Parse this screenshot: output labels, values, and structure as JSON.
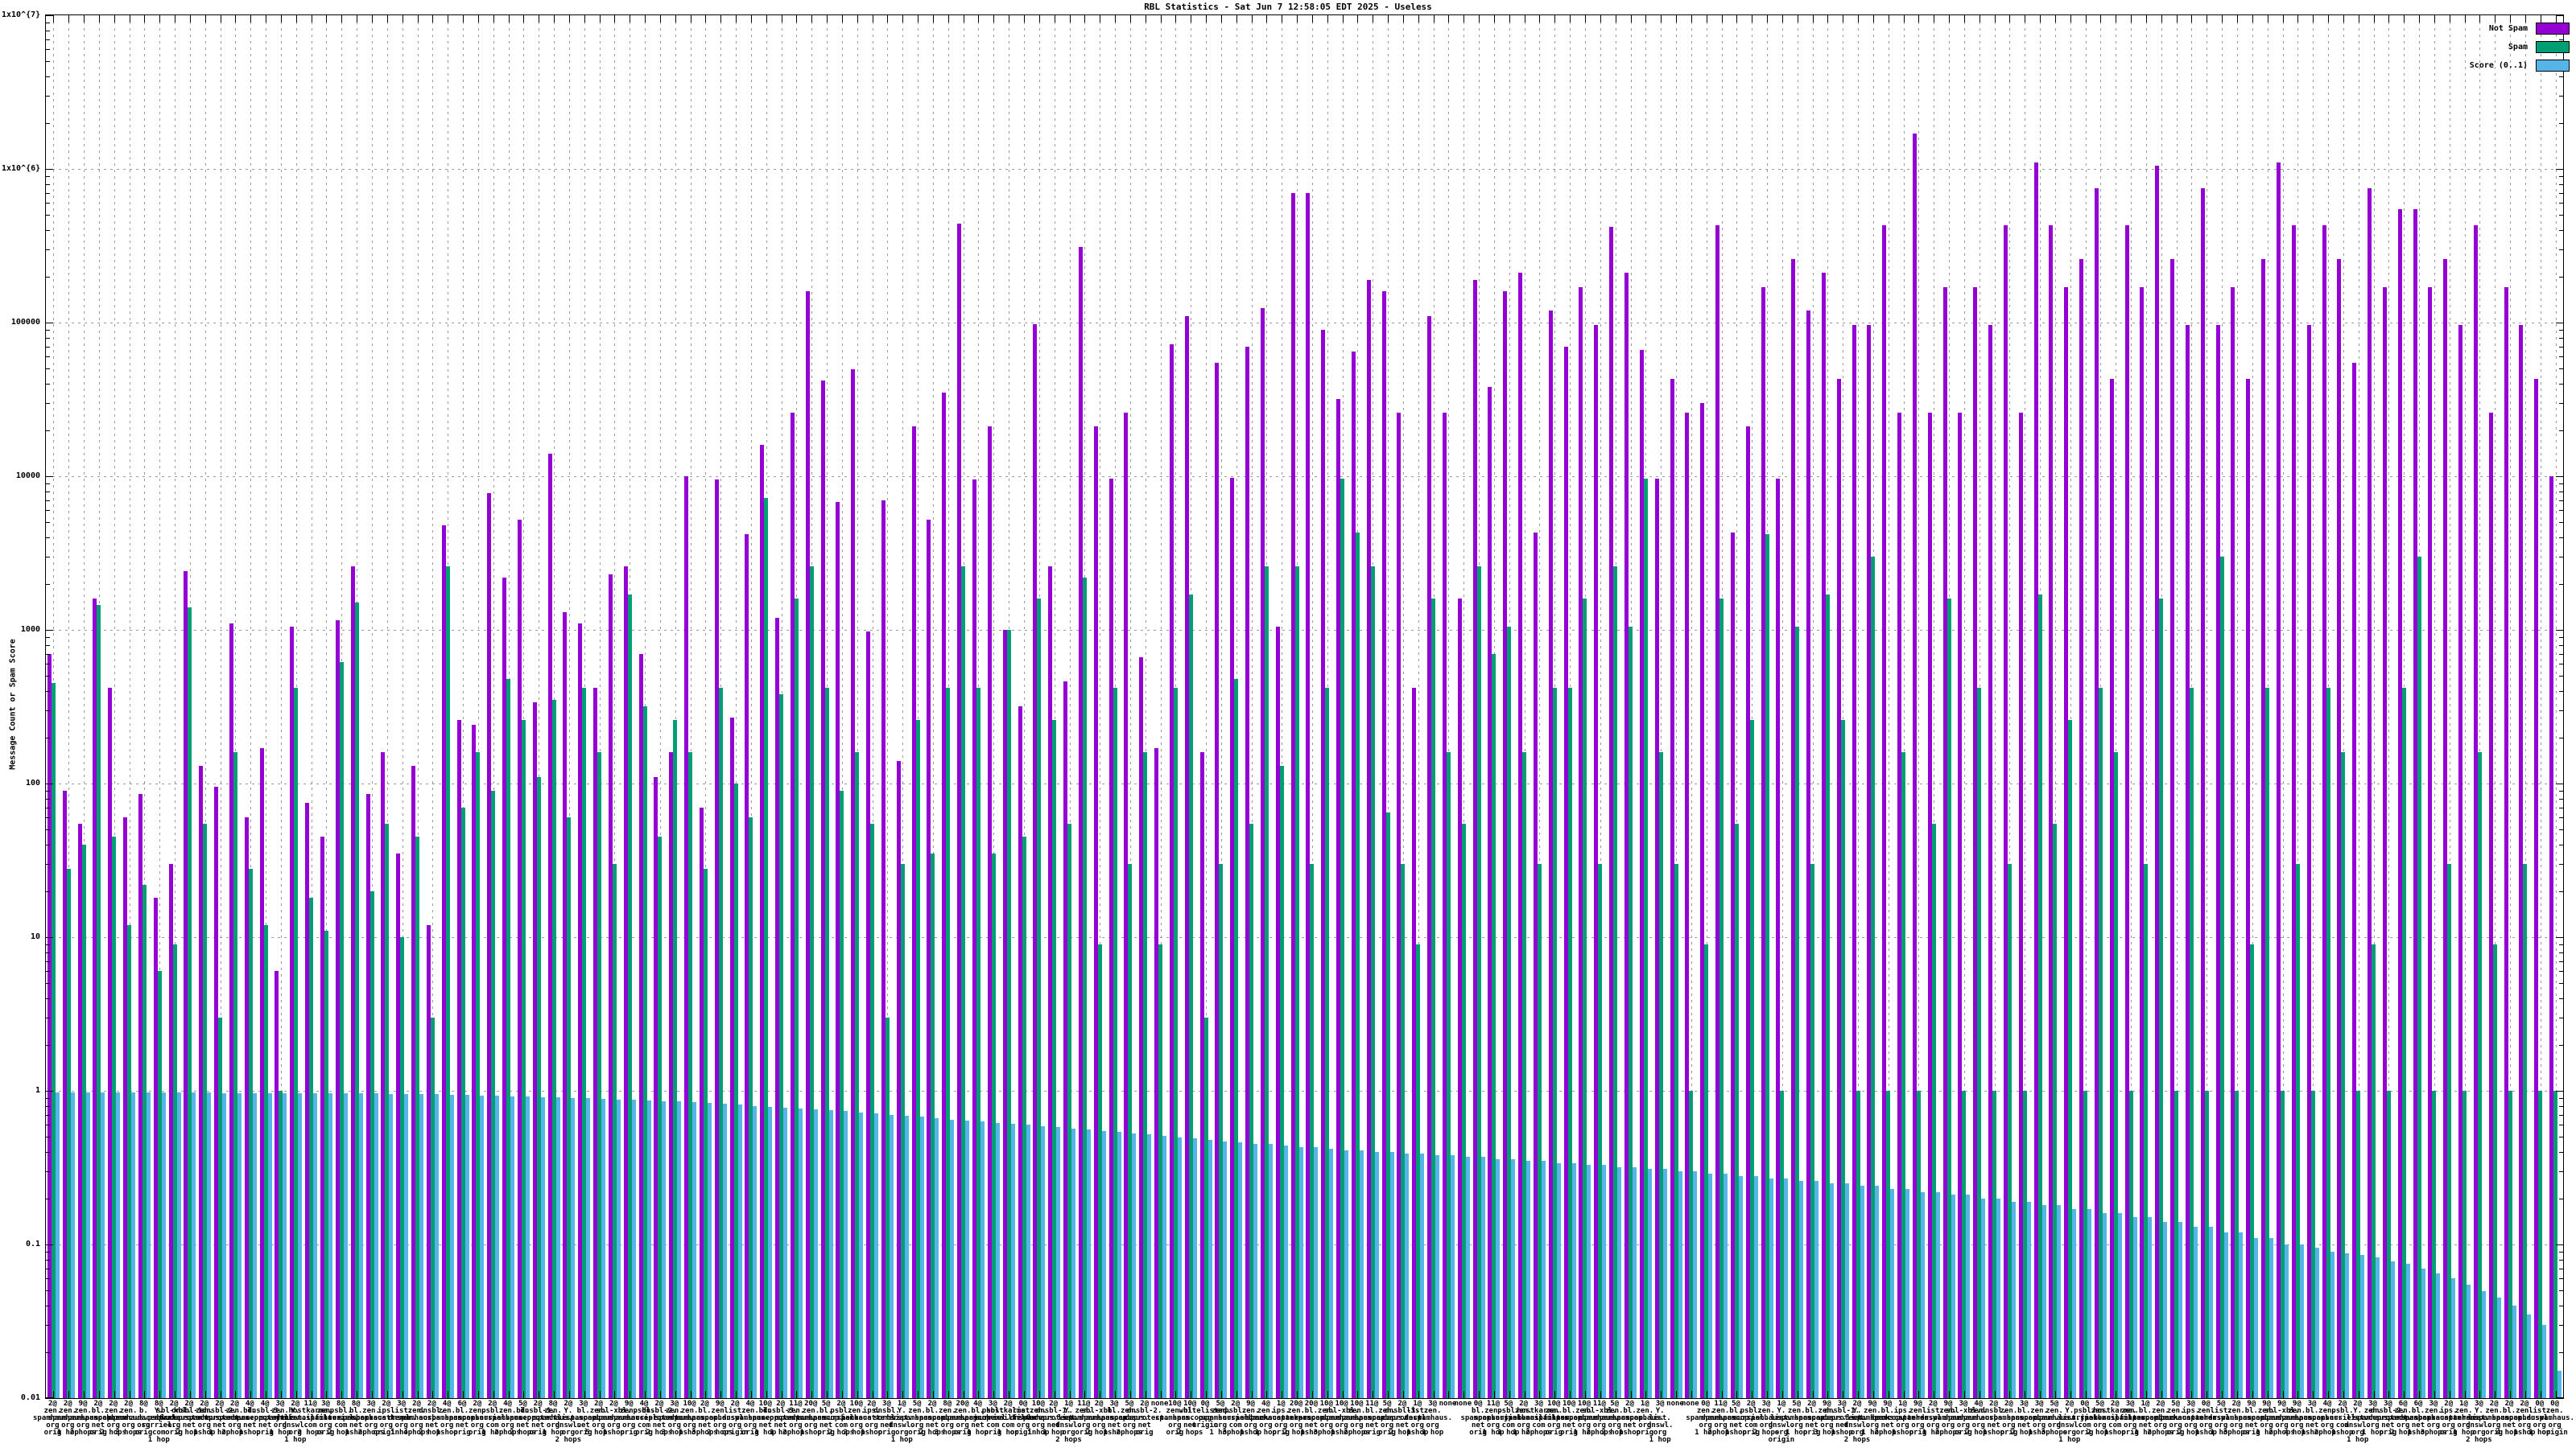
{
  "page": {
    "title": "RBL Statistics - Sat Jun  7 12:58:05 EDT 2025 - Useless"
  },
  "chart_data": {
    "type": "bar",
    "title": "RBL Statistics - Sat Jun  7 12:58:05 EDT 2025 - Useless",
    "xlabel": "",
    "ylabel": "Message Count or Spam Score",
    "yscale": "log",
    "ylim": [
      0.01,
      10000000
    ],
    "ytick_labels": [
      "1x10^{7}",
      "1x10^{6}",
      "100000",
      "10000",
      "1000",
      "100",
      "10",
      "1",
      "0.1",
      "0.01"
    ],
    "grid": true,
    "legend_position": "top-right-inside",
    "legend": [
      {
        "name": "Not Spam",
        "color": "#9400d3"
      },
      {
        "name": "Spam",
        "color": "#009e73"
      },
      {
        "name": "Score (0..1)",
        "color": "#56b4e9"
      }
    ],
    "categories": [
      "2@zen.spamhaus.org orig",
      "2@zen.spamhaus.org 1 hop",
      "9@zen.spamhaus.org 2 hops",
      "2@bl.spamcop.net orig",
      "2@zen.spamhaus.org 2 hops",
      "2@zen.spamhaus.org 3 hops",
      "8@b.barracudacentral.org orig",
      "8@Y.psbl.surriel.com 1 hop",
      "2@sbl-xbl.spamhaus.org orig",
      "2@dnsbl-1.uceprotect.net 2 hops",
      "2@zen.spamhaus.org 1 hop",
      "2@dnsbl-2.uceprotect.net 1 hop",
      "2@zen.spamhaus.org 2 hops",
      "4@bl.spamcop.net 1 hop",
      "4@dnsbl-3.uceprotect.net orig",
      "3@zen.spamhaus.org 1 hop",
      "2@Y.list.dnswl.org 1 hop",
      "11@hostkarma.junkemailfilter.com 2 hops",
      "3@zen.spamhaus.org orig",
      "8@psbl.surriel.com 2 hops",
      "8@bl.spamcop.net 1 hop",
      "3@zen.spamhaus.org 2 hops",
      "2@ips.backscatterer.org origin",
      "3@list.dnswl.org 1 hop",
      "2@zen.spamhaus.org 4 hops",
      "2@dnsbl.sorbs.net 2 hops",
      "4@zen.spamhaus.org 1 hop",
      "6@bl.spamcop.net orig",
      "2@zen.spamhaus.org orig",
      "2@psbl.surriel.com 1 hop",
      "4@zen.spamhaus.org 2 hops",
      "5@bl.spamcop.net 2 hops",
      "2@dnsbl-1.uceprotect.net orig",
      "8@zen.spamhaus.org 1 hop",
      "2@Y.list.dnswl.org 2 hops",
      "3@bl.spamcop.net orig",
      "2@zen.spamhaus.org 5 hops",
      "2@sbl-xbl.spamhaus.org 1 hop",
      "9@zen.spamhaus.org orig",
      "4@psbl.surriel.com orig",
      "2@dnsbl-2.uceprotect.net 2 hops",
      "3@zen.spamhaus.org 3 hops",
      "10@zen.spamhaus.org 1 hop",
      "2@bl.spamcop.net 3 hops",
      "9@zen.spamhaus.org 2 hops",
      "2@list.dnswl.org origin",
      "4@zen.spamhaus.org orig",
      "10@bl.spamcop.net 1 hop",
      "2@dnsbl-3.uceprotect.net 1 hop",
      "11@zen.spamhaus.org 2 hops",
      "20@zen.spamhaus.org 1 hop",
      "5@bl.spamcop.net orig",
      "2@psbl.surriel.com 2 hops",
      "10@zen.spamhaus.org 2 hops",
      "2@ips.backscatterer.org 1 hop",
      "3@dnsbl.sorbs.net orig",
      "1@Y.list.dnswl.org 1 hop",
      "5@zen.spamhaus.org orig",
      "2@bl.spamcop.net 2 hops",
      "8@zen.spamhaus.org 3 hops",
      "20@zen.spamhaus.org orig",
      "4@bl.spamcop.net 1 hop",
      "3@psbl.surriel.com orig",
      "2@hostkarma.junkemailfilter.com 1 hop",
      "0@list.dnswl.org origin",
      "10@zen.spamhaus.org 1 hop",
      "2@dnsbl-1.uceprotect.net 1 hop",
      "1@Y.list.dnswl.org 2 hops",
      "11@zen.spamhaus.org orig",
      "2@sbl-xbl.spamhaus.org 2 hops",
      "3@bl.spamcop.net 1 hop",
      "5@zen.spamhaus.org 2 hops",
      "2@dnsbl-2.uceprotect.net orig",
      "none",
      "10@zen.spamhaus.org orig",
      "10@bl.spamcop.net 2 hops",
      "0@whitelisted.org origin",
      "5@zen.spamhaus.org 1 hop",
      "2@psbl.surriel.com 3 hops",
      "9@zen.spamhaus.org 1 hop",
      "4@zen.spamhaus.org 1 hop",
      "1@ips.backscatterer.org orig",
      "20@zen.spamhaus.org 2 hops",
      "20@bl.spamcop.net 1 hop",
      "10@zen.spamhaus.org 3 hops",
      "10@sbl-xbl.spamhaus.org 1 hop",
      "10@zen.spamhaus.org 2 hops",
      "11@bl.spamcop.net orig",
      "5@zen.spamhaus.org orig",
      "2@dnsbl-3.uceprotect.net 2 hops",
      "1@list.dnswl.org 1 hop",
      "3@zen.spamhaus.org 1 hop",
      "none",
      "none",
      "0@bl.spamcop.net orig",
      "11@zen.spamhaus.org 1 hop",
      "5@psbl.surriel.com 1 hop",
      "2@zen.spamhaus.org 1 hop",
      "3@hostkarma.junkemailfilter.com 2 hops",
      "10@zen.spamhaus.org orig",
      "10@bl.spamcop.net orig",
      "10@zen.spamhaus.org 1 hop",
      "11@sbl-xbl.spamhaus.org 2 hops",
      "5@zen.spamhaus.org 2 hops",
      "2@bl.spamcop.net 1 hop",
      "1@zen.spamhaus.org orig",
      "3@Y.list.dnswl.org 1 hop",
      "none",
      "none",
      "0@zen.spamhaus.org 1 hop",
      "11@zen.spamhaus.org 2 hops",
      "5@bl.spamcop.net 1 hop",
      "2@psbl.surriel.com orig",
      "3@zen.spamhaus.org 2 hops",
      "1@Y.list.dnswl.org origin",
      "5@zen.spamhaus.org 1 hop",
      "2@bl.spamcop.net orig",
      "9@zen.spamhaus.org 3 hops",
      "3@dnsbl-1.uceprotect.net 1 hop",
      "2@Y.list.dnswl.org 2 hops",
      "9@zen.spamhaus.org 1 hop",
      "9@bl.spamcop.net 2 hops",
      "1@ips.backscatterer.org 1 hop",
      "9@zen.spamhaus.org orig",
      "2@list.dnswl.org 1 hop",
      "9@zen.spamhaus.org 2 hops",
      "3@sbl-xbl.spamhaus.org orig",
      "4@zen.spamhaus.org 2 hops",
      "2@dnsbl.sorbs.net 1 hop",
      "2@zen.spamhaus.org orig",
      "3@bl.spamcop.net 2 hops",
      "3@zen.spamhaus.org 1 hop",
      "5@zen.spamhaus.org 3 hops",
      "2@Y.list.dnswl.org 1 hop",
      "0@psbl.surriel.com orig",
      "5@zen.spamhaus.org 2 hops",
      "2@hostkarma.junkemailfilter.com 1 hop",
      "3@zen.spamhaus.org orig",
      "1@bl.spamcop.net 1 hop",
      "2@zen.spamhaus.org 2 hops",
      "5@zen.spamhaus.org orig",
      "3@ips.backscatterer.org 2 hops",
      "0@zen.spamhaus.org 1 hop",
      "5@list.dnswl.org 1 hop",
      "2@zen.spamhaus.org 3 hops",
      "9@bl.spamcop.net orig",
      "9@zen.spamhaus.org 1 hop",
      "9@sbl-xbl.spamhaus.org 2 hops",
      "9@zen.spamhaus.org 4 hops",
      "3@bl.spamcop.net 1 hop",
      "4@zen.spamhaus.org 2 hops",
      "2@psbl.surriel.com 1 hop",
      "2@Y.list.dnswl.org 1 hop",
      "3@zen.spamhaus.org 1 hop",
      "3@dnsbl-2.uceprotect.net orig",
      "6@zen.spamhaus.org 2 hops",
      "6@bl.spamcop.net 1 hop",
      "3@zen.spamhaus.org 3 hops",
      "2@ips.backscatterer.org orig",
      "1@zen.spamhaus.org 1 hop",
      "3@Y.list.dnswl.org 2 hops",
      "2@zen.spamhaus.org orig",
      "2@bl.spamcop.net 4 hops",
      "2@zen.spamhaus.org 1 hop",
      "0@list.dnswl.org 1 hop",
      "0@zen.spamhaus.org origin"
    ],
    "series": [
      {
        "name": "Not Spam",
        "color": "#9400d3",
        "values": [
          700,
          90,
          55,
          1600,
          420,
          60,
          85,
          18,
          30,
          2400,
          130,
          95,
          1100,
          60,
          170,
          6,
          1050,
          75,
          45,
          1150,
          2600,
          85,
          160,
          35,
          130,
          12,
          4800,
          260,
          240,
          7800,
          2200,
          5200,
          340,
          14000,
          1300,
          1100,
          420,
          2300,
          2600,
          700,
          110,
          160,
          10000,
          70,
          9500,
          270,
          4200,
          16000,
          1200,
          26000,
          160000,
          42000,
          6800,
          50000,
          980,
          7000,
          140,
          21000,
          5200,
          35000,
          440000,
          9500,
          21000,
          1000,
          320,
          98000,
          2600,
          460,
          310000,
          21000,
          9700,
          26000,
          660,
          170,
          72000,
          110000,
          160,
          55000,
          9800,
          70000,
          125000,
          1050,
          700000,
          700000,
          90000,
          32000,
          65000,
          190000,
          160000,
          26000,
          420,
          110000,
          26000,
          1600,
          190000,
          38000,
          160000,
          210000,
          4300,
          120000,
          70000,
          170000,
          96000,
          420000,
          210000,
          66000,
          9700,
          43000,
          26000,
          30000,
          430000,
          4300,
          21000,
          170000,
          9700,
          260000,
          120000,
          210000,
          43000,
          96000,
          96000,
          430000,
          26000,
          1700000,
          26000,
          170000,
          26000,
          170000,
          96000,
          430000,
          26000,
          1100000,
          430000,
          170000,
          260000,
          750000,
          43000,
          430000,
          170000,
          1050000,
          260000,
          96000,
          750000,
          96000,
          170000,
          43000,
          260000,
          1100000,
          430000,
          96000,
          430000,
          260000,
          55000,
          750000,
          170000,
          550000,
          550000,
          170000,
          260000,
          96000,
          430000,
          26000,
          170000,
          96000,
          43000,
          10000
        ]
      },
      {
        "name": "Spam",
        "color": "#009e73",
        "values": [
          450,
          28,
          40,
          1450,
          45,
          12,
          22,
          6,
          9,
          1400,
          55,
          3,
          160,
          28,
          12,
          1,
          420,
          18,
          11,
          620,
          1500,
          20,
          55,
          10,
          45,
          3,
          2600,
          70,
          160,
          90,
          480,
          260,
          110,
          350,
          60,
          420,
          160,
          30,
          1700,
          320,
          45,
          260,
          160,
          28,
          420,
          100,
          60,
          7200,
          380,
          1600,
          2600,
          420,
          90,
          160,
          55,
          3,
          30,
          260,
          35,
          420,
          2600,
          420,
          35,
          1000,
          45,
          1600,
          260,
          55,
          2200,
          9,
          420,
          30,
          160,
          9,
          420,
          1700,
          3,
          30,
          480,
          55,
          2600,
          130,
          2600,
          30,
          420,
          9700,
          4300,
          2600,
          65,
          30,
          9,
          1600,
          160,
          55,
          2600,
          700,
          1050,
          160,
          30,
          420,
          420,
          1600,
          30,
          2600,
          1050,
          9700,
          160,
          30,
          1,
          9,
          1600,
          55,
          260,
          4200,
          1,
          1050,
          30,
          1700,
          260,
          1,
          3000,
          1,
          160,
          1,
          55,
          1600,
          1,
          420,
          1,
          30,
          1,
          1700,
          55,
          260,
          1,
          420,
          160,
          1,
          30,
          1600,
          1,
          420,
          1,
          3000,
          1,
          9,
          420,
          1,
          30,
          1,
          420,
          160,
          1,
          9,
          1,
          420,
          3000,
          1,
          30,
          1,
          160,
          9,
          1,
          30,
          1,
          1
        ]
      },
      {
        "name": "Score (0..1)",
        "color": "#56b4e9",
        "values": [
          0.98,
          0.98,
          0.98,
          0.98,
          0.98,
          0.98,
          0.98,
          0.98,
          0.98,
          0.98,
          0.98,
          0.97,
          0.97,
          0.97,
          0.97,
          0.97,
          0.97,
          0.96,
          0.96,
          0.96,
          0.96,
          0.96,
          0.95,
          0.95,
          0.95,
          0.95,
          0.94,
          0.94,
          0.93,
          0.93,
          0.92,
          0.92,
          0.91,
          0.91,
          0.9,
          0.9,
          0.89,
          0.88,
          0.88,
          0.87,
          0.86,
          0.85,
          0.84,
          0.83,
          0.82,
          0.81,
          0.8,
          0.79,
          0.78,
          0.77,
          0.76,
          0.75,
          0.74,
          0.72,
          0.71,
          0.7,
          0.69,
          0.68,
          0.66,
          0.65,
          0.64,
          0.63,
          0.62,
          0.61,
          0.6,
          0.59,
          0.58,
          0.57,
          0.56,
          0.55,
          0.54,
          0.53,
          0.52,
          0.51,
          0.5,
          0.49,
          0.48,
          0.47,
          0.46,
          0.45,
          0.45,
          0.44,
          0.43,
          0.43,
          0.42,
          0.41,
          0.41,
          0.4,
          0.4,
          0.39,
          0.39,
          0.38,
          0.38,
          0.37,
          0.37,
          0.36,
          0.36,
          0.35,
          0.35,
          0.34,
          0.34,
          0.33,
          0.33,
          0.32,
          0.32,
          0.31,
          0.31,
          0.3,
          0.3,
          0.29,
          0.29,
          0.28,
          0.28,
          0.27,
          0.27,
          0.26,
          0.26,
          0.25,
          0.25,
          0.24,
          0.24,
          0.23,
          0.23,
          0.22,
          0.22,
          0.21,
          0.21,
          0.2,
          0.2,
          0.19,
          0.19,
          0.18,
          0.18,
          0.17,
          0.17,
          0.16,
          0.16,
          0.15,
          0.15,
          0.14,
          0.14,
          0.13,
          0.13,
          0.12,
          0.12,
          0.11,
          0.11,
          0.1,
          0.1,
          0.095,
          0.09,
          0.088,
          0.085,
          0.082,
          0.078,
          0.075,
          0.07,
          0.065,
          0.06,
          0.055,
          0.05,
          0.045,
          0.04,
          0.035,
          0.03,
          0.015
        ]
      }
    ]
  }
}
